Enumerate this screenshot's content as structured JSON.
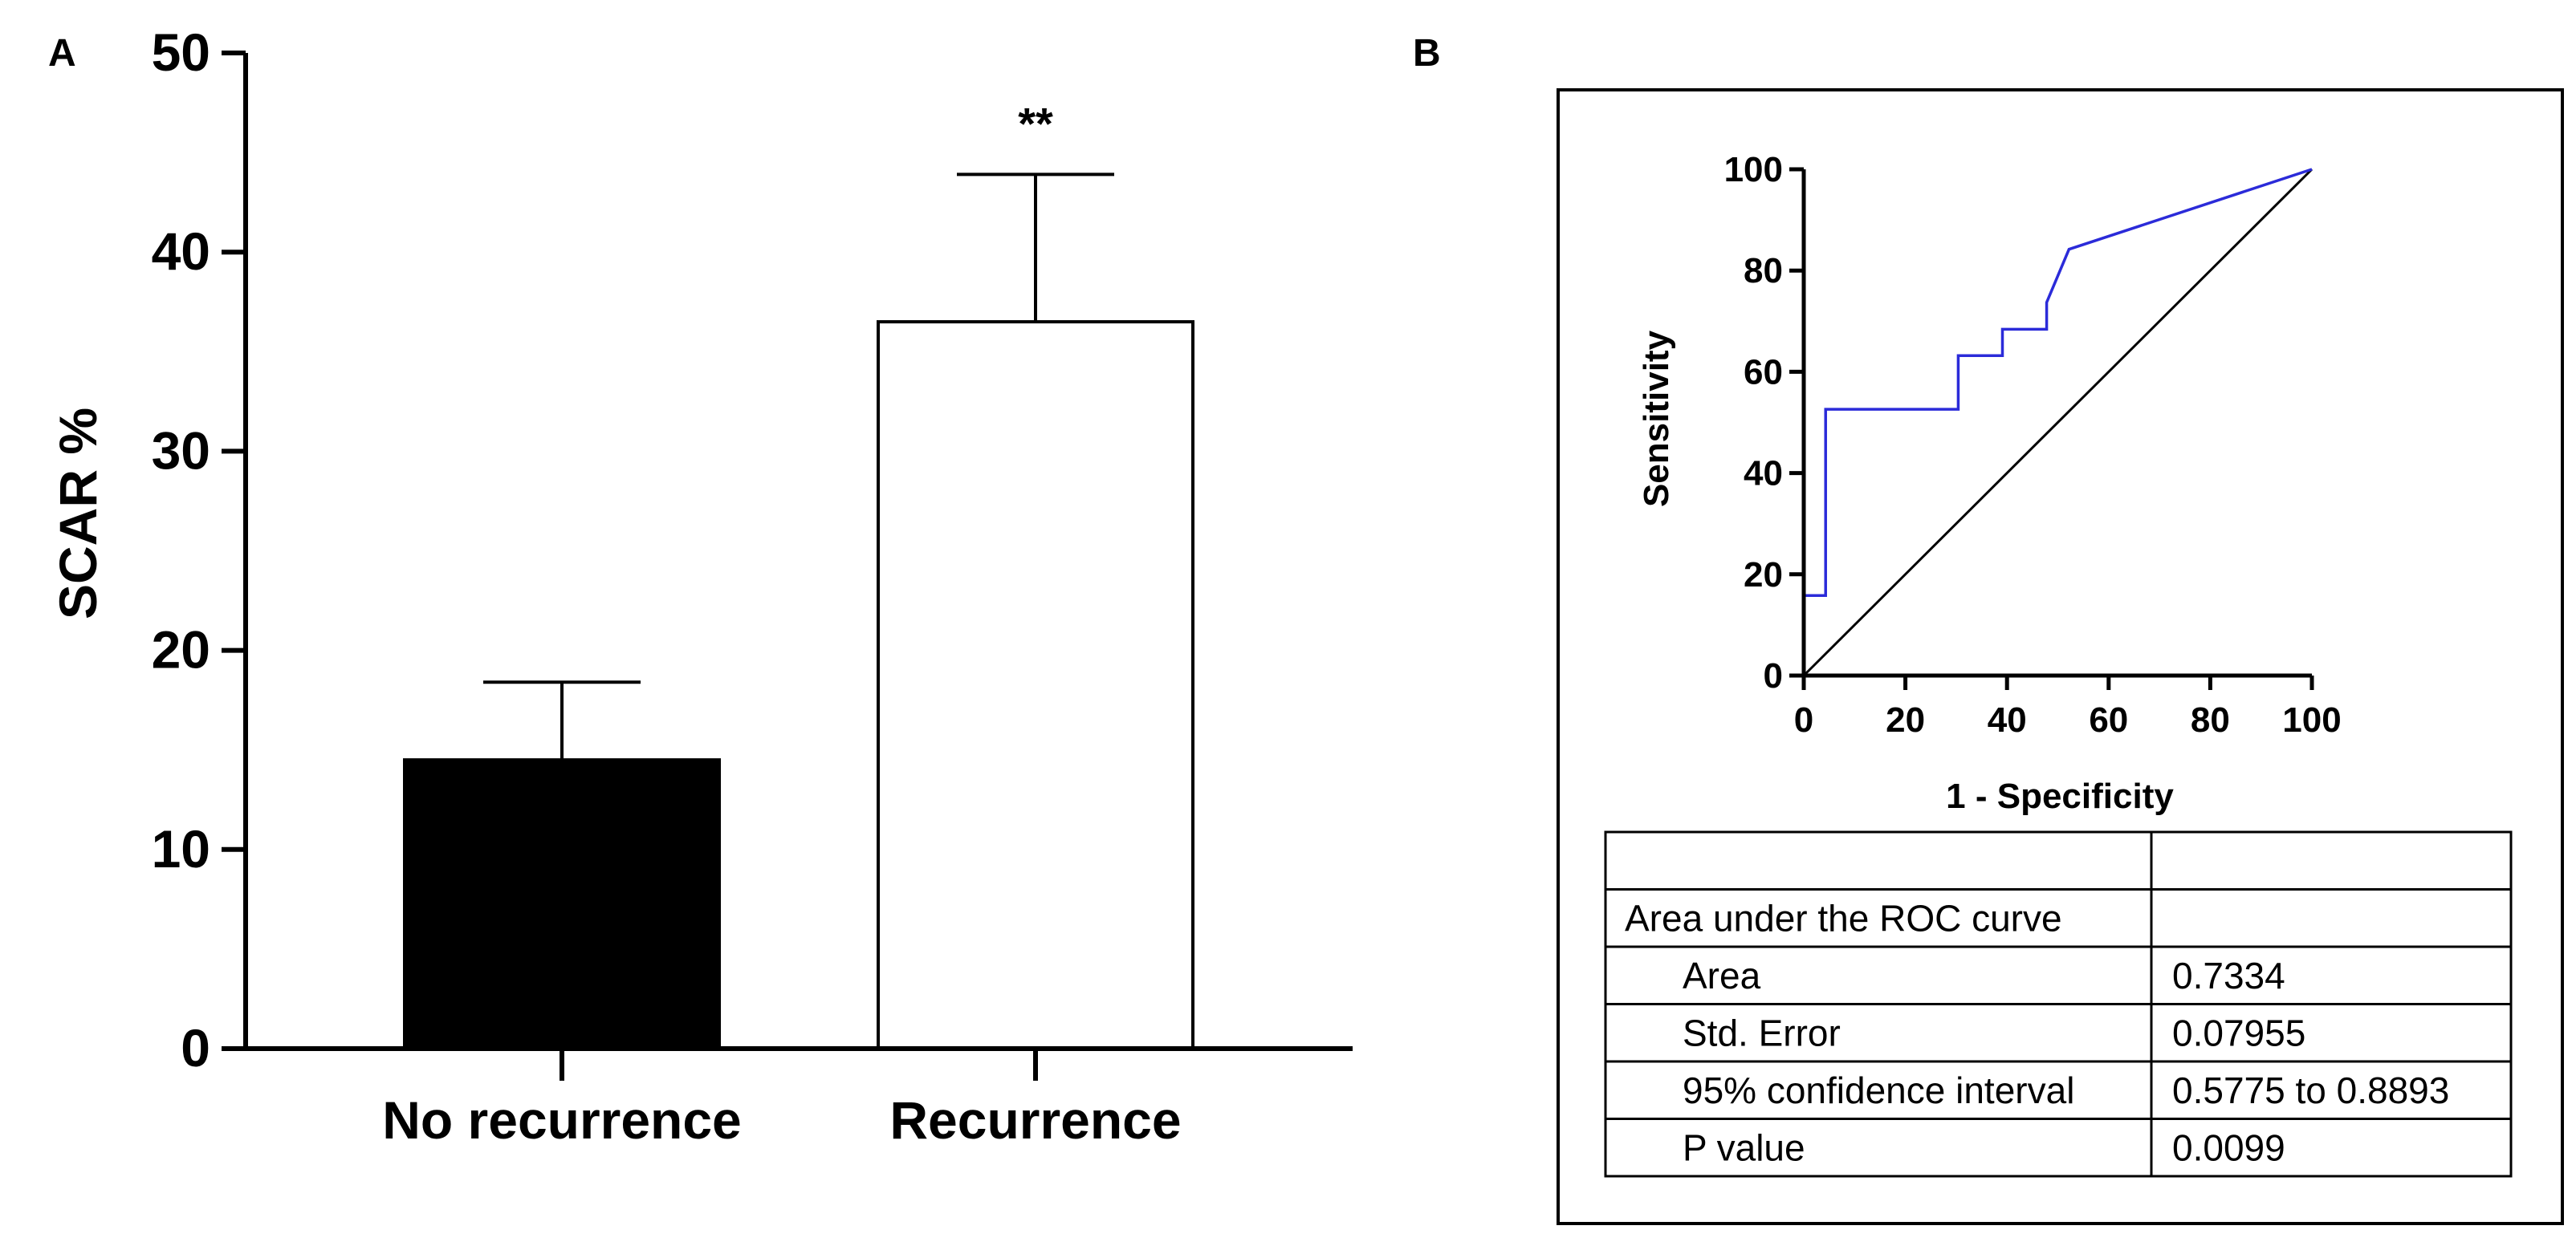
{
  "chart_data": [
    {
      "panel": "A",
      "type": "bar",
      "categories": [
        "No recurrence",
        "Recurrence"
      ],
      "values": [
        14.5,
        36.5
      ],
      "error_upper": [
        18.4,
        43.9
      ],
      "bar_colors": [
        "#000000",
        "#ffffff"
      ],
      "ylabel": "SCAR %",
      "xlabel": "",
      "ylim": [
        0,
        50
      ],
      "yticks": [
        0,
        10,
        20,
        30,
        40,
        50
      ],
      "annotation": "**"
    },
    {
      "panel": "B",
      "type": "line",
      "xlabel": "1 - Specificity",
      "ylabel": "Sensitivity",
      "xlim": [
        0,
        100
      ],
      "ylim": [
        0,
        100
      ],
      "xticks": [
        0,
        20,
        40,
        60,
        80,
        100
      ],
      "yticks": [
        0,
        20,
        40,
        60,
        80,
        100
      ],
      "series": [
        {
          "name": "ROC curve",
          "color": "#2b2bd9",
          "x": [
            0,
            0,
            4.3,
            4.3,
            30.4,
            30.4,
            39.1,
            39.1,
            47.8,
            47.8,
            52.2,
            100
          ],
          "y": [
            0,
            15.8,
            15.8,
            52.6,
            52.6,
            63.2,
            63.2,
            68.4,
            68.4,
            73.7,
            84.2,
            100
          ]
        },
        {
          "name": "Reference line",
          "color": "#000000",
          "x": [
            0,
            100
          ],
          "y": [
            0,
            100
          ]
        }
      ],
      "table": {
        "header": [
          "",
          ""
        ],
        "rows": [
          [
            "Area under the ROC curve",
            ""
          ],
          [
            "Area",
            "0.7334"
          ],
          [
            "Std. Error",
            "0.07955"
          ],
          [
            "95% confidence interval",
            "0.5775 to 0.8893"
          ],
          [
            "P value",
            "0.0099"
          ]
        ]
      }
    }
  ]
}
